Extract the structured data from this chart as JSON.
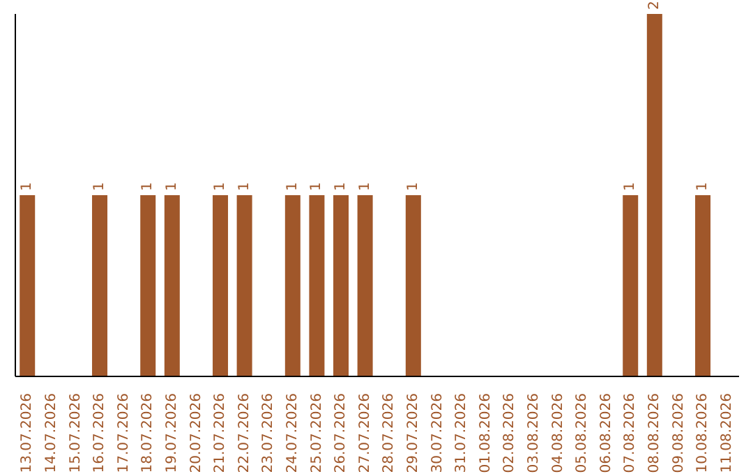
{
  "chart_data": {
    "type": "bar",
    "categories": [
      "13.07.2026",
      "14.07.2026",
      "15.07.2026",
      "16.07.2026",
      "17.07.2026",
      "18.07.2026",
      "19.07.2026",
      "20.07.2026",
      "21.07.2026",
      "22.07.2026",
      "23.07.2026",
      "24.07.2026",
      "25.07.2026",
      "26.07.2026",
      "27.07.2026",
      "28.07.2026",
      "29.07.2026",
      "30.07.2026",
      "31.07.2026",
      "01.08.2026",
      "02.08.2026",
      "03.08.2026",
      "04.08.2026",
      "05.08.2026",
      "06.08.2026",
      "07.08.2026",
      "08.08.2026",
      "09.08.2026",
      "10.08.2026",
      "11.08.2026"
    ],
    "values": [
      1,
      0,
      0,
      1,
      0,
      1,
      1,
      0,
      1,
      1,
      0,
      1,
      1,
      1,
      1,
      0,
      1,
      0,
      0,
      0,
      0,
      0,
      0,
      0,
      0,
      1,
      2,
      0,
      1,
      0
    ],
    "value_labels": [
      "1",
      null,
      null,
      "1",
      null,
      "1",
      "1",
      null,
      "1",
      "1",
      null,
      "1",
      "1",
      "1",
      "1",
      null,
      "1",
      null,
      null,
      null,
      null,
      null,
      null,
      null,
      null,
      "1",
      "2",
      null,
      "1",
      null
    ],
    "color": "#a0572a",
    "tick_labels": "x"
  }
}
